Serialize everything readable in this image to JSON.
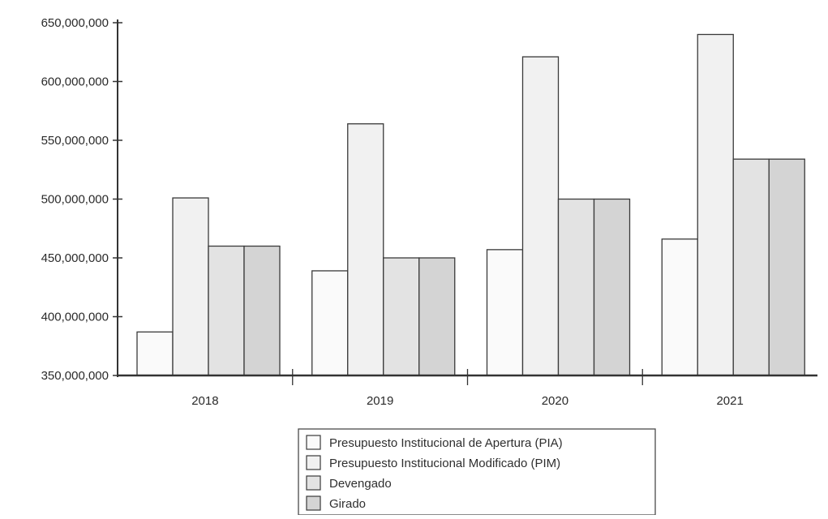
{
  "chart_data": {
    "type": "bar",
    "categories": [
      "2018",
      "2019",
      "2020",
      "2021"
    ],
    "series": [
      {
        "name": "Presupuesto Institucional de Apertura (PIA)",
        "values": [
          387000000,
          439000000,
          457000000,
          466000000
        ]
      },
      {
        "name": "Presupuesto Institucional Modificado (PIM)",
        "values": [
          501000000,
          564000000,
          621000000,
          640000000
        ]
      },
      {
        "name": "Devengado",
        "values": [
          460000000,
          450000000,
          500000000,
          534000000
        ]
      },
      {
        "name": "Girado",
        "values": [
          460000000,
          450000000,
          500000000,
          534000000
        ]
      }
    ],
    "y_ticks": [
      "350,000,000",
      "400,000,000",
      "450,000,000",
      "500,000,000",
      "550,000,000",
      "600,000,000",
      "650,000,000"
    ],
    "ylim": [
      350000000,
      650000000
    ],
    "title": "",
    "xlabel": "",
    "ylabel": "",
    "legend_position": "bottom-center",
    "grid": false
  },
  "colors": {
    "series_fills": [
      "#fafafa",
      "#f1f1f1",
      "#e3e3e3",
      "#d4d4d4"
    ],
    "bar_stroke": "#3a3a3a",
    "axis": "#333333"
  }
}
